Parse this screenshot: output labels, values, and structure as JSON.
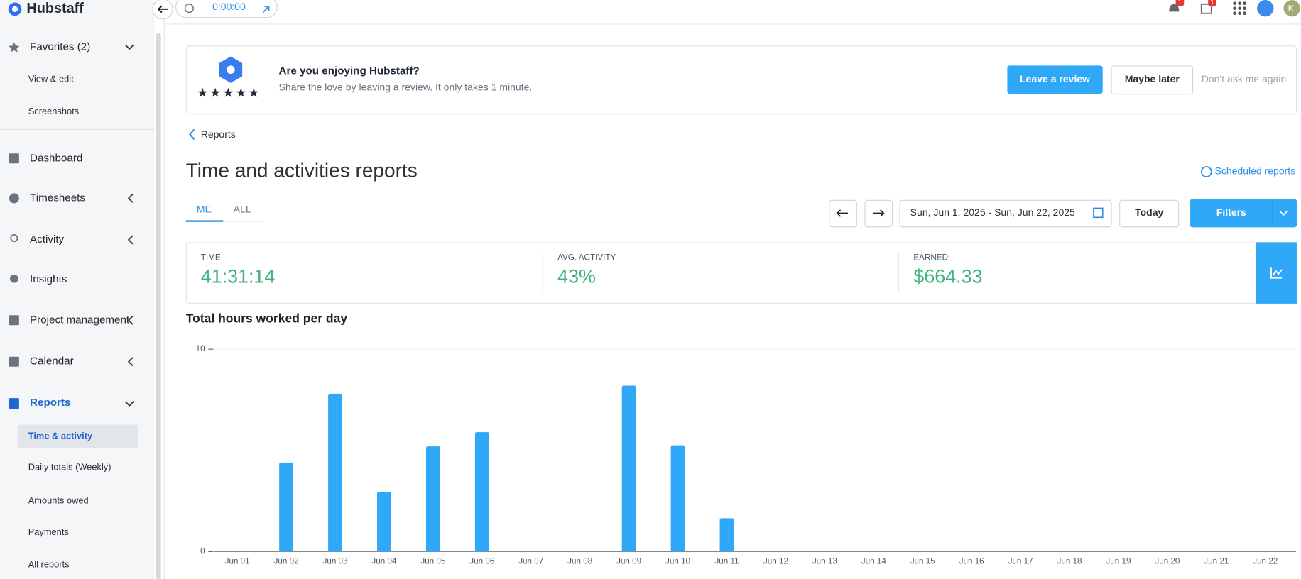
{
  "app": {
    "logo": "Hubstaff",
    "timer": "0:00:00",
    "notification_badge": "1",
    "gift_badge": "1",
    "avatar": "K"
  },
  "sidebar": {
    "favorites": "Favorites (2)",
    "favorite_items": [
      "View & edit",
      "Screenshots"
    ],
    "items": [
      "Dashboard",
      "Timesheets",
      "Activity",
      "Insights",
      "Project management",
      "Calendar",
      "Reports"
    ],
    "report_items": [
      "Time & activity",
      "Daily totals (Weekly)",
      "Amounts owed",
      "Payments",
      "All reports"
    ]
  },
  "banner": {
    "title": "Are you enjoying Hubstaff?",
    "text": "Share the love by leaving a review. It only takes 1 minute.",
    "primary": "Leave a review",
    "secondary": "Maybe later",
    "dismiss": "Don't ask me again"
  },
  "page": {
    "back": "Reports",
    "title": "Time and activities reports",
    "scheduled": "Scheduled reports",
    "tabs": [
      "ME",
      "ALL"
    ],
    "date_range": "Sun, Jun 1, 2025 - Sun, Jun 22, 2025",
    "today": "Today",
    "filters": "Filters"
  },
  "summary": [
    {
      "label": "TIME",
      "value": "41:31:14"
    },
    {
      "label": "AVG. ACTIVITY",
      "value": "43%"
    },
    {
      "label": "EARNED",
      "value": "$664.33"
    }
  ],
  "chart_data": {
    "type": "bar",
    "title": "Total hours worked per day",
    "categories": [
      "Jun 01",
      "Jun 02",
      "Jun 03",
      "Jun 04",
      "Jun 05",
      "Jun 06",
      "Jun 07",
      "Jun 08",
      "Jun 09",
      "Jun 10",
      "Jun 11",
      "Jun 12",
      "Jun 13",
      "Jun 14",
      "Jun 15",
      "Jun 16",
      "Jun 17",
      "Jun 18",
      "Jun 19",
      "Jun 20",
      "Jun 21",
      "Jun 22"
    ],
    "values": [
      0,
      4.4,
      7.8,
      2.95,
      5.2,
      5.9,
      0,
      0,
      8.2,
      5.25,
      1.65,
      0,
      0,
      0,
      0,
      0,
      0,
      0,
      0,
      0,
      0,
      0
    ],
    "color": "#2ea8f7",
    "ylim": [
      0,
      10
    ],
    "yticks": [
      0,
      10
    ],
    "grid": true
  }
}
